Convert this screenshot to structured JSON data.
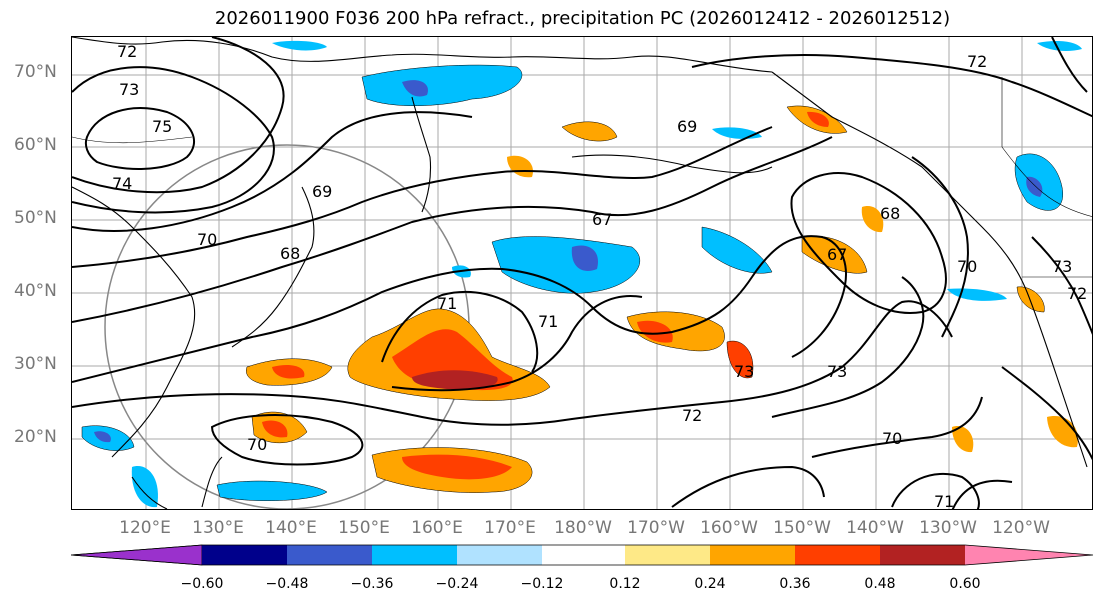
{
  "title": "2026011900 F036 200 hPa refract., precipitation PC (2026012412 - 2026012512)",
  "lat_labels": [
    "70°N",
    "60°N",
    "50°N",
    "40°N",
    "30°N",
    "20°N"
  ],
  "lon_labels": [
    "120°E",
    "130°E",
    "140°E",
    "150°E",
    "160°E",
    "170°E",
    "180°W",
    "170°W",
    "160°W",
    "150°W",
    "140°W",
    "130°W",
    "120°W"
  ],
  "contour_labels": [
    "72",
    "73",
    "75",
    "74",
    "70",
    "68",
    "69",
    "71",
    "67",
    "68",
    "67",
    "70",
    "73",
    "72",
    "71",
    "72",
    "70",
    "73",
    "70",
    "71",
    "69",
    "73",
    "72"
  ],
  "colorbar": {
    "colors": [
      "#9a31cc",
      "#00008b",
      "#3a5acc",
      "#00bfff",
      "#b0e2ff",
      "#ffffff",
      "#fee987",
      "#ffa500",
      "#ff3f00",
      "#b22222",
      "#ff84b0"
    ],
    "ticks": [
      "−0.60",
      "−0.48",
      "−0.36",
      "−0.24",
      "−0.12",
      "0.12",
      "0.24",
      "0.36",
      "0.48",
      "0.60"
    ]
  }
}
